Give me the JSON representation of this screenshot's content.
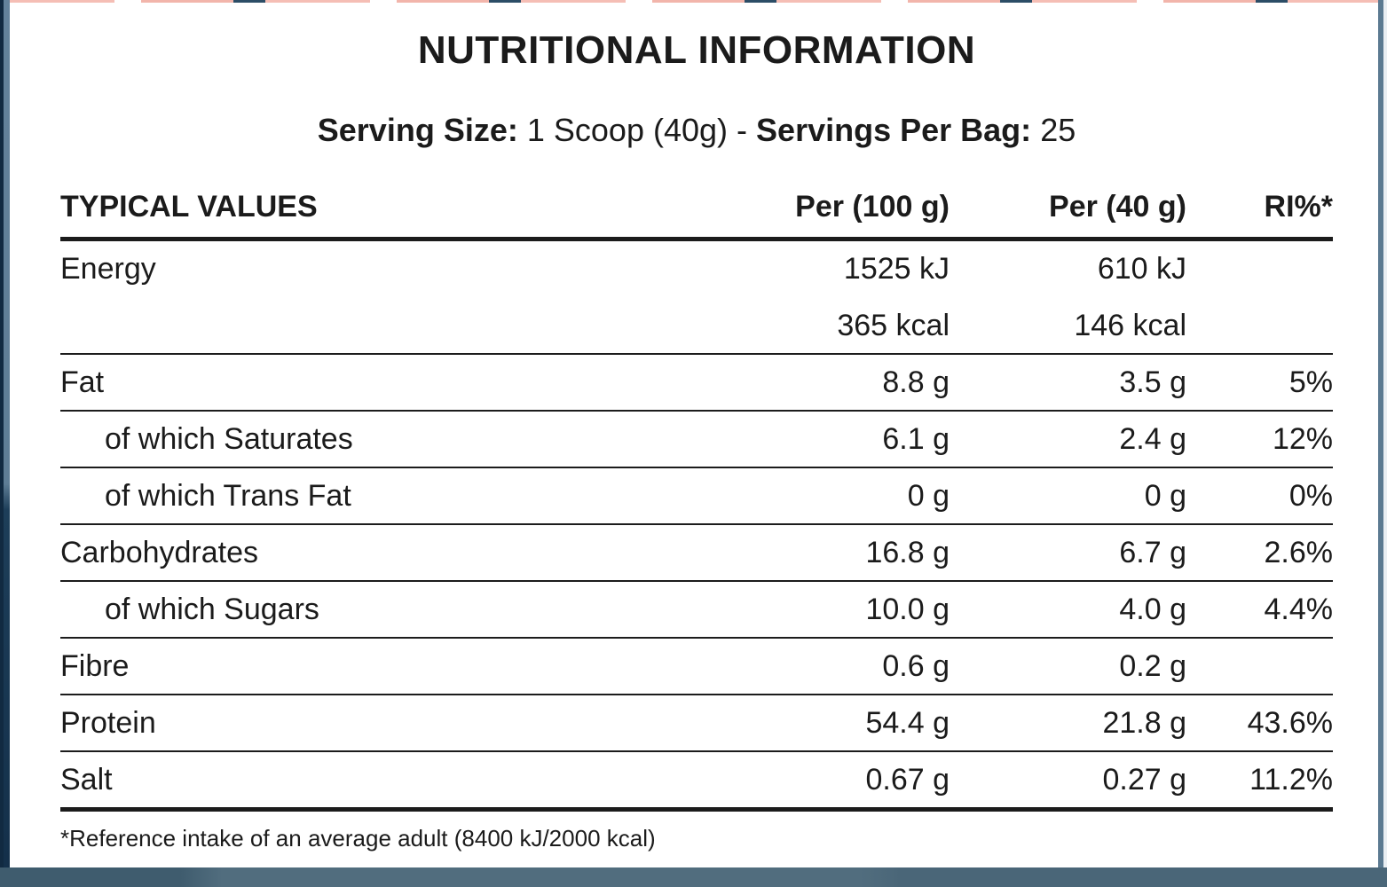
{
  "label": {
    "title": "NUTRITIONAL INFORMATION",
    "serving": {
      "size_label": "Serving Size:",
      "size_value": "1 Scoop (40g)",
      "separator": "-",
      "per_bag_label": "Servings Per Bag:",
      "per_bag_value": "25"
    },
    "footnote": "*Reference intake of an average adult (8400 kJ/2000 kcal)"
  },
  "table": {
    "headers": [
      "TYPICAL VALUES",
      "Per (100 g)",
      "Per (40 g)",
      "RI%*"
    ],
    "rows": [
      {
        "name": "Energy",
        "per100": "1525 kJ",
        "per40": "610 kJ",
        "ri": "",
        "per100_line2": "365 kcal",
        "per40_line2": "146 kcal"
      },
      {
        "name": "Fat",
        "per100": "8.8 g",
        "per40": "3.5 g",
        "ri": "5%"
      },
      {
        "name": "of which Saturates",
        "per100": "6.1 g",
        "per40": "2.4 g",
        "ri": "12%"
      },
      {
        "name": "of which Trans Fat",
        "per100": "0 g",
        "per40": "0 g",
        "ri": "0%"
      },
      {
        "name": "Carbohydrates",
        "per100": "16.8 g",
        "per40": "6.7 g",
        "ri": "2.6%"
      },
      {
        "name": "of which Sugars",
        "per100": "10.0 g",
        "per40": "4.0 g",
        "ri": "4.4%"
      },
      {
        "name": "Fibre",
        "per100": "0.6 g",
        "per40": "0.2 g",
        "ri": ""
      },
      {
        "name": "Protein",
        "per100": "54.4 g",
        "per40": "21.8 g",
        "ri": "43.6%"
      },
      {
        "name": "Salt",
        "per100": "0.67 g",
        "per40": "0.27 g",
        "ri": "11.2%"
      }
    ]
  },
  "colors": {
    "navy": "#16324c",
    "slate": "#5e7d95",
    "bottom_bar": "#4a6678",
    "salmon": "#f4bcb3",
    "text": "#1b1b1b"
  }
}
